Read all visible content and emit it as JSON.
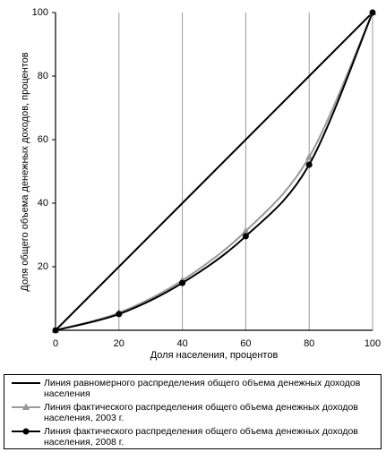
{
  "chart_data": {
    "type": "line",
    "x_label": "Доля населения, процентов",
    "y_label": "Доля общего объема денежных доходов, процентов",
    "x": [
      0,
      20,
      40,
      60,
      80,
      100
    ],
    "xlim": [
      0,
      100
    ],
    "xticks": [
      0,
      20,
      40,
      60,
      80,
      100
    ],
    "ylim": [
      0,
      100
    ],
    "yticks": [
      20,
      40,
      60,
      80,
      100
    ],
    "grid": "x",
    "series": [
      {
        "name": "Линия равномерного распределения общего объема денежных доходов населения",
        "color": "#000000",
        "marker": "none",
        "values": [
          0,
          20,
          40,
          60,
          80,
          100
        ]
      },
      {
        "name": "Линия фактического распределения общего объема денежных доходов населения, 2003 г.",
        "color": "#999999",
        "marker": "triangle",
        "values": [
          0,
          5.5,
          15.7,
          31.2,
          54.5,
          100
        ]
      },
      {
        "name": "Линия фактического распределения общего объема денежных доходов населения, 2008 г.",
        "color": "#000000",
        "marker": "circle",
        "values": [
          0,
          5.1,
          14.9,
          29.6,
          52.1,
          100
        ]
      }
    ]
  }
}
